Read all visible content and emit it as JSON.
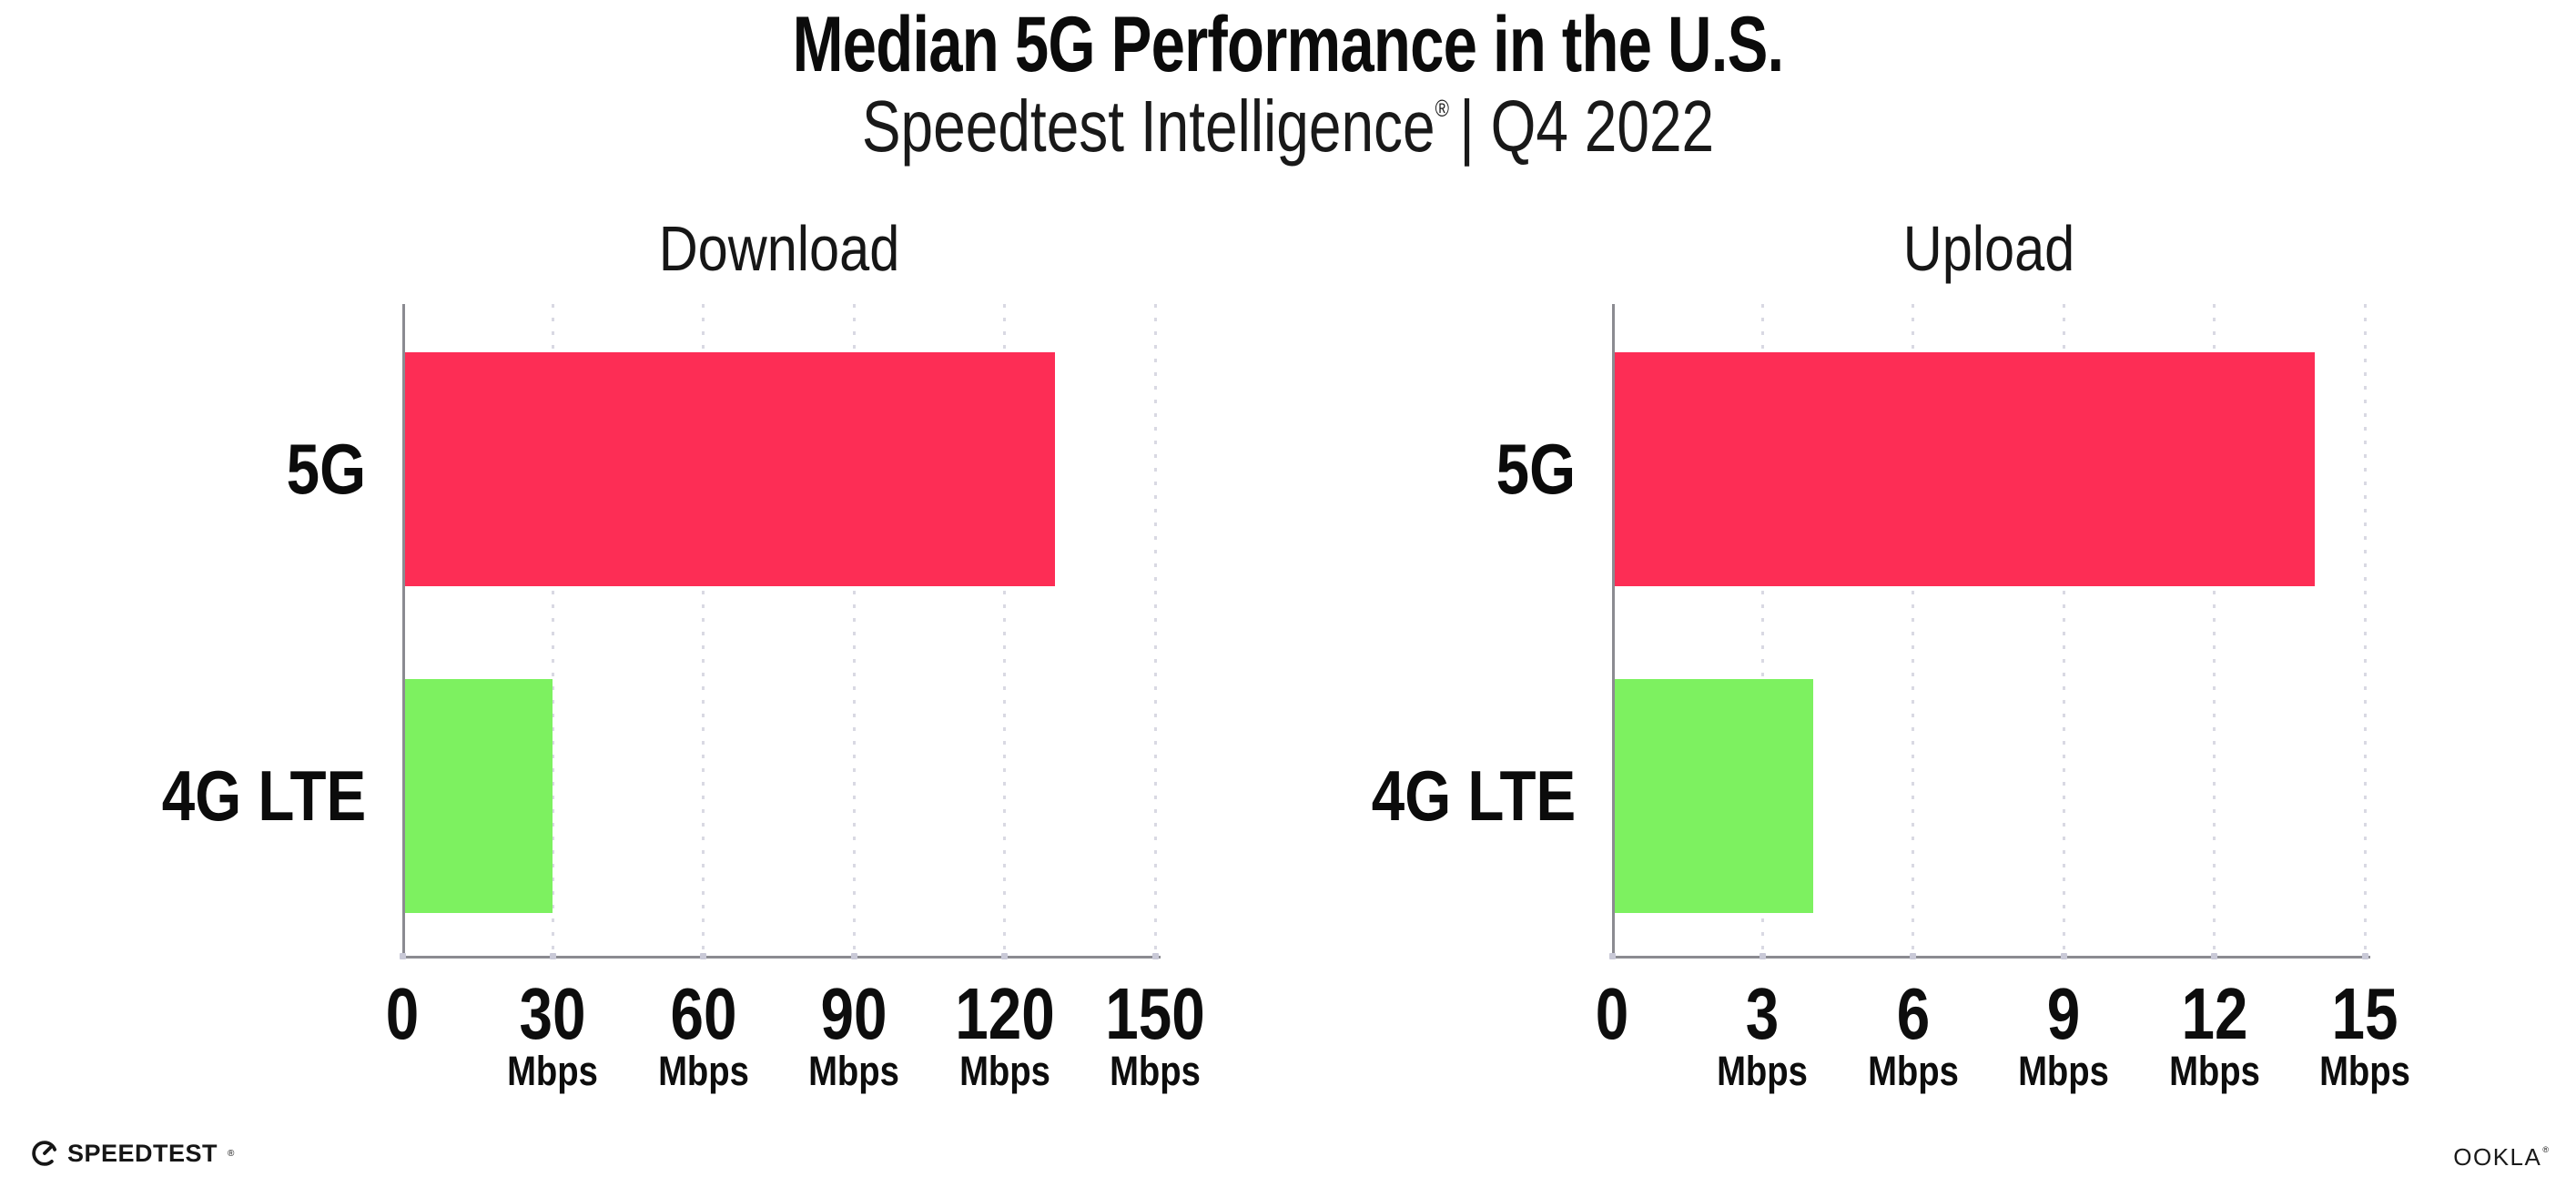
{
  "header": {
    "title": "Median 5G Performance in the U.S.",
    "subtitle_brand": "Speedtest Intelligence",
    "subtitle_reg": "®",
    "subtitle_rest": "| Q4 2022"
  },
  "footer": {
    "speedtest_logo_text": "SPEEDTEST",
    "speedtest_reg": "®",
    "ookla_logo_text": "OOKLA",
    "ookla_reg": "®"
  },
  "colors": {
    "series": [
      "#fd2d55",
      "#7df160"
    ],
    "bar_5g": "#fd2d55",
    "bar_4g_lte": "#7df160",
    "axis": "#8b8b91",
    "grid": "#d9d9e3",
    "tick_mark": "#c9c9d7",
    "text": "#111111",
    "background": "#ffffff"
  },
  "chart_data": [
    {
      "type": "bar",
      "orientation": "horizontal",
      "title": "Download",
      "categories": [
        "5G",
        "4G LTE"
      ],
      "values": [
        130,
        30
      ],
      "unit": "Mbps",
      "xlim": [
        0,
        150
      ],
      "xticks": [
        0,
        30,
        60,
        90,
        120,
        150
      ],
      "grid": "dotted-vertical",
      "legend": "none"
    },
    {
      "type": "bar",
      "orientation": "horizontal",
      "title": "Upload",
      "categories": [
        "5G",
        "4G LTE"
      ],
      "values": [
        14,
        4
      ],
      "unit": "Mbps",
      "xlim": [
        0,
        15
      ],
      "xticks": [
        0,
        3,
        6,
        9,
        12,
        15
      ],
      "grid": "dotted-vertical",
      "legend": "none"
    }
  ]
}
